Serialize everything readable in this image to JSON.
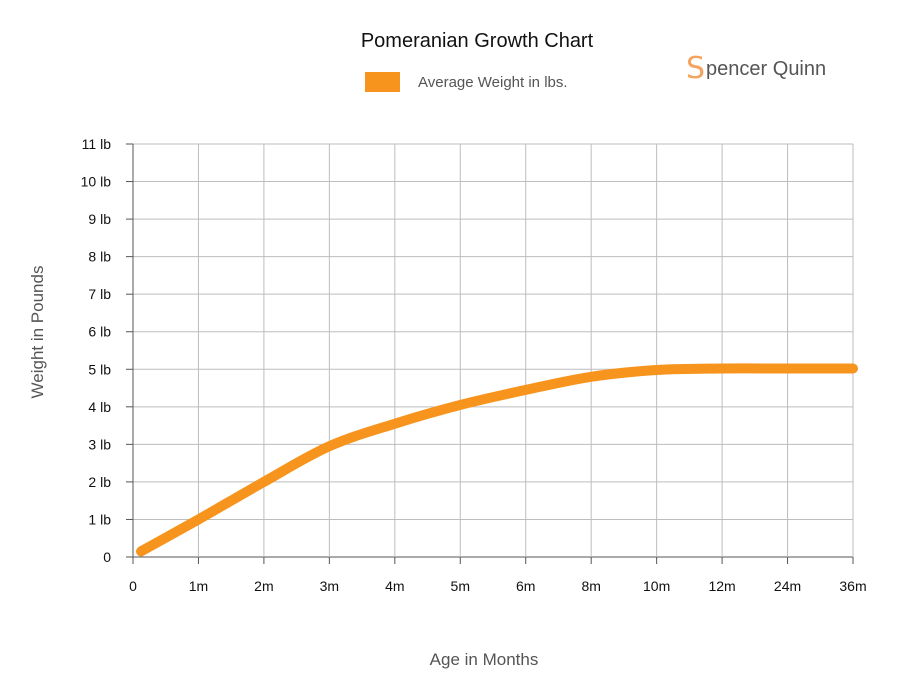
{
  "chart_data": {
    "type": "line",
    "title": "Pomeranian Growth Chart",
    "xlabel": "Age in Months",
    "ylabel": "Weight in Pounds",
    "categories": [
      "0",
      "1m",
      "2m",
      "3m",
      "4m",
      "5m",
      "6m",
      "8m",
      "10m",
      "12m",
      "24m",
      "36m"
    ],
    "y_tick_labels": [
      "0",
      "1 lb",
      "2 lb",
      "3 lb",
      "4 lb",
      "5 lb",
      "6 lb",
      "7 lb",
      "8 lb",
      "9 lb",
      "10 lb",
      "11 lb"
    ],
    "ylim": [
      0,
      11
    ],
    "grid": true,
    "legend_position": "top-center",
    "series": [
      {
        "name": "Average Weight in lbs.",
        "color": "#f7941d",
        "x": [
          "0",
          "1m",
          "2m",
          "3m",
          "4m",
          "5m",
          "6m",
          "8m",
          "10m",
          "12m",
          "24m",
          "36m"
        ],
        "values": [
          0.15,
          1.0,
          2.0,
          2.95,
          3.55,
          4.05,
          4.45,
          4.8,
          4.98,
          5.02,
          5.02,
          5.02
        ]
      }
    ]
  },
  "brand": {
    "initial": "S",
    "text": "pencer Quinn"
  }
}
